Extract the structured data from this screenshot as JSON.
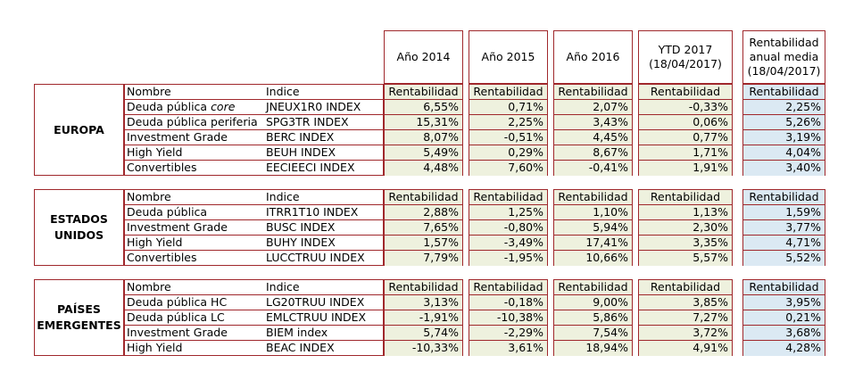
{
  "headers": [
    {
      "lines": [
        "Año 2014"
      ]
    },
    {
      "lines": [
        "Año 2015"
      ]
    },
    {
      "lines": [
        "Año 2016"
      ]
    },
    {
      "lines": [
        "YTD 2017",
        "(18/04/2017)"
      ]
    },
    {
      "lines": [
        "Rentabilidad",
        "anual media",
        "(18/04/2017)"
      ]
    }
  ],
  "col_labels": {
    "name": "Nombre",
    "index": "Indice",
    "metric": "Rentabilidad"
  },
  "groups": [
    {
      "region_lines": [
        "EUROPA"
      ],
      "rows": [
        {
          "name": "Deuda pública ",
          "name_em": "core",
          "index": "JNEUX1R0 INDEX",
          "values": [
            "6,55%",
            "0,71%",
            "2,07%",
            "-0,33%",
            "2,25%"
          ]
        },
        {
          "name": "Deuda pública periferia",
          "name_em": "",
          "index": "SPG3TR INDEX",
          "values": [
            "15,31%",
            "2,25%",
            "3,43%",
            "0,06%",
            "5,26%"
          ]
        },
        {
          "name": "Investment Grade",
          "name_em": "",
          "index": "BERC INDEX",
          "values": [
            "8,07%",
            "-0,51%",
            "4,45%",
            "0,77%",
            "3,19%"
          ]
        },
        {
          "name": "High Yield",
          "name_em": "",
          "index": "BEUH INDEX",
          "values": [
            "5,49%",
            "0,29%",
            "8,67%",
            "1,71%",
            "4,04%"
          ]
        },
        {
          "name": "Convertibles",
          "name_em": "",
          "index": "EECIEECI INDEX",
          "values": [
            "4,48%",
            "7,60%",
            "-0,41%",
            "1,91%",
            "3,40%"
          ]
        }
      ]
    },
    {
      "region_lines": [
        "ESTADOS",
        "UNIDOS"
      ],
      "rows": [
        {
          "name": "Deuda pública",
          "name_em": "",
          "index": "ITRR1T10 INDEX",
          "values": [
            "2,88%",
            "1,25%",
            "1,10%",
            "1,13%",
            "1,59%"
          ]
        },
        {
          "name": "Investment Grade",
          "name_em": "",
          "index": "BUSC INDEX",
          "values": [
            "7,65%",
            "-0,80%",
            "5,94%",
            "2,30%",
            "3,77%"
          ]
        },
        {
          "name": "High Yield",
          "name_em": "",
          "index": "BUHY INDEX",
          "values": [
            "1,57%",
            "-3,49%",
            "17,41%",
            "3,35%",
            "4,71%"
          ]
        },
        {
          "name": "Convertibles",
          "name_em": "",
          "index": "LUCCTRUU INDEX",
          "values": [
            "7,79%",
            "-1,95%",
            "10,66%",
            "5,57%",
            "5,52%"
          ]
        }
      ]
    },
    {
      "region_lines": [
        "PAÍSES",
        "EMERGENTES"
      ],
      "rows": [
        {
          "name": "Deuda pública HC",
          "name_em": "",
          "index": "LG20TRUU INDEX",
          "values": [
            "3,13%",
            "-0,18%",
            "9,00%",
            "3,85%",
            "3,95%"
          ]
        },
        {
          "name": "Deuda pública LC",
          "name_em": "",
          "index": "EMLCTRUU INDEX",
          "values": [
            "-1,91%",
            "-10,38%",
            "5,86%",
            "7,27%",
            "0,21%"
          ]
        },
        {
          "name": "Investment Grade",
          "name_em": "",
          "index": "BIEM index",
          "values": [
            "5,74%",
            "-2,29%",
            "7,54%",
            "3,72%",
            "3,68%"
          ]
        },
        {
          "name": "High Yield",
          "name_em": "",
          "index": "BEAC INDEX",
          "values": [
            "-10,33%",
            "3,61%",
            "18,94%",
            "4,91%",
            "4,28%"
          ]
        }
      ]
    }
  ],
  "colors": {
    "border": "#a0282c",
    "value_bg": "#eef1de",
    "avg_bg": "#dbe9f3"
  }
}
